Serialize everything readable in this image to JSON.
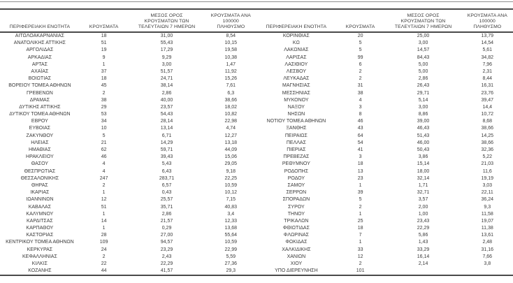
{
  "table_headers": {
    "region": "ΠΕΡΙΦΕΡΕΙΑΚΗ ΕΝΟΤΗΤΑ",
    "cases": "ΚΡΟΥΣΜΑΤΑ",
    "avg7": "ΜΕΣΟΣ ΟΡΟΣ\nΚΡΟΥΣΜΑΤΩΝ ΤΩΝ\nΤΕΛΕΥΤΑΙΩΝ 7 ΗΜΕΡΩΝ",
    "per100k": "ΚΡΟΥΣΜΑΤΑ ΑΝΑ 100000\nΠΛΗΘΥΣΜΟ"
  },
  "left_table": {
    "rows": [
      [
        "ΑΙΤΩΛΟΑΚΑΡΝΑΝΙΑΣ",
        "18",
        "31,00",
        "8,54"
      ],
      [
        "ΑΝΑΤΟΛΙΚΗΣ ΑΤΤΙΚΗΣ",
        "51",
        "55,43",
        "10,15"
      ],
      [
        "ΑΡΓΟΛΙΔΑΣ",
        "19",
        "17,29",
        "19,58"
      ],
      [
        "ΑΡΚΑΔΙΑΣ",
        "9",
        "9,29",
        "10,38"
      ],
      [
        "ΑΡΤΑΣ",
        "1",
        "3,00",
        "1,47"
      ],
      [
        "ΑΧΑΪΑΣ",
        "37",
        "51,57",
        "11,92"
      ],
      [
        "ΒΟΙΩΤΙΑΣ",
        "18",
        "24,71",
        "15,26"
      ],
      [
        "ΒΟΡΕΙΟΥ ΤΟΜΕΑ ΑΘΗΝΩΝ",
        "45",
        "38,14",
        "7,61"
      ],
      [
        "ΓΡΕΒΕΝΩΝ",
        "2",
        "2,86",
        "6,3"
      ],
      [
        "ΔΡΑΜΑΣ",
        "38",
        "40,00",
        "38,66"
      ],
      [
        "ΔΥΤΙΚΗΣ ΑΤΤΙΚΗΣ",
        "29",
        "23,57",
        "18,02"
      ],
      [
        "ΔΥΤΙΚΟΥ ΤΟΜΕΑ ΑΘΗΝΩΝ",
        "53",
        "54,43",
        "10,82"
      ],
      [
        "ΕΒΡΟΥ",
        "34",
        "28,14",
        "22,98"
      ],
      [
        "ΕΥΒΟΙΑΣ",
        "10",
        "13,14",
        "4,74"
      ],
      [
        "ΖΑΚΥΝΘΟΥ",
        "5",
        "6,71",
        "12,27"
      ],
      [
        "ΗΛΕΙΑΣ",
        "21",
        "14,29",
        "13,18"
      ],
      [
        "ΗΜΑΘΙΑΣ",
        "62",
        "59,71",
        "44,09"
      ],
      [
        "ΗΡΑΚΛΕΙΟΥ",
        "46",
        "39,43",
        "15,06"
      ],
      [
        "ΘΑΣΟΥ",
        "4",
        "5,43",
        "29,05"
      ],
      [
        "ΘΕΣΠΡΩΤΙΑΣ",
        "4",
        "6,43",
        "9,18"
      ],
      [
        "ΘΕΣΣΑΛΟΝΙΚΗΣ",
        "247",
        "283,71",
        "22,25"
      ],
      [
        "ΘΗΡΑΣ",
        "2",
        "6,57",
        "10,59"
      ],
      [
        "ΙΚΑΡΙΑΣ",
        "1",
        "0,43",
        "10,12"
      ],
      [
        "ΙΩΑΝΝΙΝΩΝ",
        "12",
        "25,57",
        "7,15"
      ],
      [
        "ΚΑΒΑΛΑΣ",
        "51",
        "35,71",
        "40,83"
      ],
      [
        "ΚΑΛΥΜΝΟΥ",
        "1",
        "2,86",
        "3,4"
      ],
      [
        "ΚΑΡΔΙΤΣΑΣ",
        "14",
        "21,57",
        "12,33"
      ],
      [
        "ΚΑΡΠΑΘΟΥ",
        "1",
        "0,29",
        "13,68"
      ],
      [
        "ΚΑΣΤΟΡΙΑΣ",
        "28",
        "27,00",
        "55,64"
      ],
      [
        "ΚΕΝΤΡΙΚΟΥ ΤΟΜΕΑ ΑΘΗΝΩΝ",
        "109",
        "94,57",
        "10,59"
      ],
      [
        "ΚΕΡΚΥΡΑΣ",
        "24",
        "23,29",
        "22,99"
      ],
      [
        "ΚΕΦΑΛΛΗΝΙΑΣ",
        "2",
        "2,43",
        "5,59"
      ],
      [
        "ΚΙΛΚΙΣ",
        "22",
        "22,29",
        "27,36"
      ],
      [
        "ΚΟΖΑΝΗΣ",
        "44",
        "41,57",
        "29,3"
      ]
    ]
  },
  "right_table": {
    "rows": [
      [
        "ΚΟΡΙΝΘΙΑΣ",
        "20",
        "25,00",
        "13,79"
      ],
      [
        "ΚΩ",
        "5",
        "3,00",
        "14,54"
      ],
      [
        "ΛΑΚΩΝΙΑΣ",
        "5",
        "14,57",
        "5,61"
      ],
      [
        "ΛΑΡΙΣΑΣ",
        "99",
        "84,43",
        "34,82"
      ],
      [
        "ΛΑΣΙΘΙΟΥ",
        "6",
        "5,00",
        "7,96"
      ],
      [
        "ΛΕΣΒΟΥ",
        "2",
        "5,00",
        "2,31"
      ],
      [
        "ΛΕΥΚΑΔΑΣ",
        "2",
        "2,86",
        "8,44"
      ],
      [
        "ΜΑΓΝΗΣΙΑΣ",
        "31",
        "26,43",
        "16,31"
      ],
      [
        "ΜΕΣΣΗΝΙΑΣ",
        "38",
        "29,71",
        "23,76"
      ],
      [
        "ΜΥΚΟΝΟΥ",
        "4",
        "5,14",
        "39,47"
      ],
      [
        "ΝΑΞΟΥ",
        "3",
        "3,00",
        "14,4"
      ],
      [
        "ΝΗΣΩΝ",
        "8",
        "8,86",
        "10,72"
      ],
      [
        "ΝΟΤΙΟΥ ΤΟΜΕΑ ΑΘΗΝΩΝ",
        "46",
        "39,00",
        "8,68"
      ],
      [
        "ΞΑΝΘΗΣ",
        "43",
        "46,43",
        "38,66"
      ],
      [
        "ΠΕΙΡΑΙΩΣ",
        "64",
        "51,43",
        "14,25"
      ],
      [
        "ΠΕΛΛΑΣ",
        "54",
        "46,00",
        "38,66"
      ],
      [
        "ΠΙΕΡΙΑΣ",
        "41",
        "50,43",
        "32,36"
      ],
      [
        "ΠΡΕΒΕΖΑΣ",
        "3",
        "3,86",
        "5,22"
      ],
      [
        "ΡΕΘΥΜΝΟΥ",
        "18",
        "15,14",
        "21,03"
      ],
      [
        "ΡΟΔΟΠΗΣ",
        "13",
        "18,00",
        "11,6"
      ],
      [
        "ΡΟΔΟΥ",
        "23",
        "32,14",
        "19,19"
      ],
      [
        "ΣΑΜΟΥ",
        "1",
        "1,71",
        "3,03"
      ],
      [
        "ΣΕΡΡΩΝ",
        "39",
        "32,71",
        "22,11"
      ],
      [
        "ΣΠΟΡΑΔΩΝ",
        "5",
        "3,57",
        "36,24"
      ],
      [
        "ΣΥΡΟΥ",
        "2",
        "2,00",
        "9,3"
      ],
      [
        "ΤΗΝΟΥ",
        "1",
        "1,00",
        "11,58"
      ],
      [
        "ΤΡΙΚΑΛΩΝ",
        "25",
        "23,43",
        "19,07"
      ],
      [
        "ΦΘΙΩΤΙΔΑΣ",
        "18",
        "22,29",
        "11,38"
      ],
      [
        "ΦΛΩΡΙΝΑΣ",
        "7",
        "5,86",
        "13,61"
      ],
      [
        "ΦΩΚΙΔΑΣ",
        "1",
        "1,43",
        "2,48"
      ],
      [
        "ΧΑΛΚΙΔΙΚΗΣ",
        "33",
        "33,29",
        "31,16"
      ],
      [
        "ΧΑΝΙΩΝ",
        "12",
        "16,14",
        "7,66"
      ],
      [
        "ΧΙΟΥ",
        "2",
        "2,14",
        "3,8"
      ],
      [
        "ΥΠΟ ΔΙΕΡΕΥΝΗΣΗ",
        "101",
        "",
        ""
      ]
    ]
  },
  "colors": {
    "rule_dark": "#4a4a4a",
    "rule_thin": "#8f8f8f",
    "text": "#3a3a3a",
    "background": "#ffffff"
  }
}
